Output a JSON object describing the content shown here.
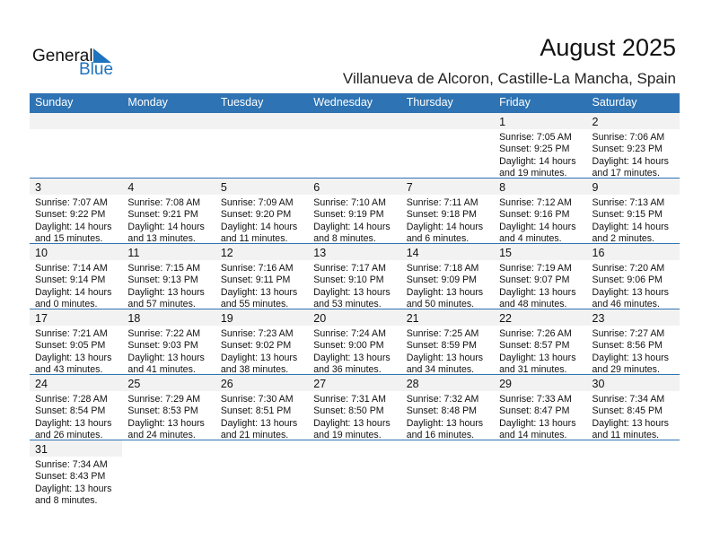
{
  "logo": {
    "text1": "General",
    "text2": "Blue"
  },
  "header": {
    "title": "August 2025",
    "location": "Villanueva de Alcoron, Castille-La Mancha, Spain"
  },
  "colors": {
    "accent": "#2e73b3",
    "band": "#f2f2f2"
  },
  "weekdays": [
    "Sunday",
    "Monday",
    "Tuesday",
    "Wednesday",
    "Thursday",
    "Friday",
    "Saturday"
  ],
  "weeks": [
    [
      null,
      null,
      null,
      null,
      null,
      {
        "day": "1",
        "sunrise": "Sunrise: 7:05 AM",
        "sunset": "Sunset: 9:25 PM",
        "daylight1": "Daylight: 14 hours",
        "daylight2": "and 19 minutes."
      },
      {
        "day": "2",
        "sunrise": "Sunrise: 7:06 AM",
        "sunset": "Sunset: 9:23 PM",
        "daylight1": "Daylight: 14 hours",
        "daylight2": "and 17 minutes."
      }
    ],
    [
      {
        "day": "3",
        "sunrise": "Sunrise: 7:07 AM",
        "sunset": "Sunset: 9:22 PM",
        "daylight1": "Daylight: 14 hours",
        "daylight2": "and 15 minutes."
      },
      {
        "day": "4",
        "sunrise": "Sunrise: 7:08 AM",
        "sunset": "Sunset: 9:21 PM",
        "daylight1": "Daylight: 14 hours",
        "daylight2": "and 13 minutes."
      },
      {
        "day": "5",
        "sunrise": "Sunrise: 7:09 AM",
        "sunset": "Sunset: 9:20 PM",
        "daylight1": "Daylight: 14 hours",
        "daylight2": "and 11 minutes."
      },
      {
        "day": "6",
        "sunrise": "Sunrise: 7:10 AM",
        "sunset": "Sunset: 9:19 PM",
        "daylight1": "Daylight: 14 hours",
        "daylight2": "and 8 minutes."
      },
      {
        "day": "7",
        "sunrise": "Sunrise: 7:11 AM",
        "sunset": "Sunset: 9:18 PM",
        "daylight1": "Daylight: 14 hours",
        "daylight2": "and 6 minutes."
      },
      {
        "day": "8",
        "sunrise": "Sunrise: 7:12 AM",
        "sunset": "Sunset: 9:16 PM",
        "daylight1": "Daylight: 14 hours",
        "daylight2": "and 4 minutes."
      },
      {
        "day": "9",
        "sunrise": "Sunrise: 7:13 AM",
        "sunset": "Sunset: 9:15 PM",
        "daylight1": "Daylight: 14 hours",
        "daylight2": "and 2 minutes."
      }
    ],
    [
      {
        "day": "10",
        "sunrise": "Sunrise: 7:14 AM",
        "sunset": "Sunset: 9:14 PM",
        "daylight1": "Daylight: 14 hours",
        "daylight2": "and 0 minutes."
      },
      {
        "day": "11",
        "sunrise": "Sunrise: 7:15 AM",
        "sunset": "Sunset: 9:13 PM",
        "daylight1": "Daylight: 13 hours",
        "daylight2": "and 57 minutes."
      },
      {
        "day": "12",
        "sunrise": "Sunrise: 7:16 AM",
        "sunset": "Sunset: 9:11 PM",
        "daylight1": "Daylight: 13 hours",
        "daylight2": "and 55 minutes."
      },
      {
        "day": "13",
        "sunrise": "Sunrise: 7:17 AM",
        "sunset": "Sunset: 9:10 PM",
        "daylight1": "Daylight: 13 hours",
        "daylight2": "and 53 minutes."
      },
      {
        "day": "14",
        "sunrise": "Sunrise: 7:18 AM",
        "sunset": "Sunset: 9:09 PM",
        "daylight1": "Daylight: 13 hours",
        "daylight2": "and 50 minutes."
      },
      {
        "day": "15",
        "sunrise": "Sunrise: 7:19 AM",
        "sunset": "Sunset: 9:07 PM",
        "daylight1": "Daylight: 13 hours",
        "daylight2": "and 48 minutes."
      },
      {
        "day": "16",
        "sunrise": "Sunrise: 7:20 AM",
        "sunset": "Sunset: 9:06 PM",
        "daylight1": "Daylight: 13 hours",
        "daylight2": "and 46 minutes."
      }
    ],
    [
      {
        "day": "17",
        "sunrise": "Sunrise: 7:21 AM",
        "sunset": "Sunset: 9:05 PM",
        "daylight1": "Daylight: 13 hours",
        "daylight2": "and 43 minutes."
      },
      {
        "day": "18",
        "sunrise": "Sunrise: 7:22 AM",
        "sunset": "Sunset: 9:03 PM",
        "daylight1": "Daylight: 13 hours",
        "daylight2": "and 41 minutes."
      },
      {
        "day": "19",
        "sunrise": "Sunrise: 7:23 AM",
        "sunset": "Sunset: 9:02 PM",
        "daylight1": "Daylight: 13 hours",
        "daylight2": "and 38 minutes."
      },
      {
        "day": "20",
        "sunrise": "Sunrise: 7:24 AM",
        "sunset": "Sunset: 9:00 PM",
        "daylight1": "Daylight: 13 hours",
        "daylight2": "and 36 minutes."
      },
      {
        "day": "21",
        "sunrise": "Sunrise: 7:25 AM",
        "sunset": "Sunset: 8:59 PM",
        "daylight1": "Daylight: 13 hours",
        "daylight2": "and 34 minutes."
      },
      {
        "day": "22",
        "sunrise": "Sunrise: 7:26 AM",
        "sunset": "Sunset: 8:57 PM",
        "daylight1": "Daylight: 13 hours",
        "daylight2": "and 31 minutes."
      },
      {
        "day": "23",
        "sunrise": "Sunrise: 7:27 AM",
        "sunset": "Sunset: 8:56 PM",
        "daylight1": "Daylight: 13 hours",
        "daylight2": "and 29 minutes."
      }
    ],
    [
      {
        "day": "24",
        "sunrise": "Sunrise: 7:28 AM",
        "sunset": "Sunset: 8:54 PM",
        "daylight1": "Daylight: 13 hours",
        "daylight2": "and 26 minutes."
      },
      {
        "day": "25",
        "sunrise": "Sunrise: 7:29 AM",
        "sunset": "Sunset: 8:53 PM",
        "daylight1": "Daylight: 13 hours",
        "daylight2": "and 24 minutes."
      },
      {
        "day": "26",
        "sunrise": "Sunrise: 7:30 AM",
        "sunset": "Sunset: 8:51 PM",
        "daylight1": "Daylight: 13 hours",
        "daylight2": "and 21 minutes."
      },
      {
        "day": "27",
        "sunrise": "Sunrise: 7:31 AM",
        "sunset": "Sunset: 8:50 PM",
        "daylight1": "Daylight: 13 hours",
        "daylight2": "and 19 minutes."
      },
      {
        "day": "28",
        "sunrise": "Sunrise: 7:32 AM",
        "sunset": "Sunset: 8:48 PM",
        "daylight1": "Daylight: 13 hours",
        "daylight2": "and 16 minutes."
      },
      {
        "day": "29",
        "sunrise": "Sunrise: 7:33 AM",
        "sunset": "Sunset: 8:47 PM",
        "daylight1": "Daylight: 13 hours",
        "daylight2": "and 14 minutes."
      },
      {
        "day": "30",
        "sunrise": "Sunrise: 7:34 AM",
        "sunset": "Sunset: 8:45 PM",
        "daylight1": "Daylight: 13 hours",
        "daylight2": "and 11 minutes."
      }
    ],
    [
      {
        "day": "31",
        "sunrise": "Sunrise: 7:34 AM",
        "sunset": "Sunset: 8:43 PM",
        "daylight1": "Daylight: 13 hours",
        "daylight2": "and 8 minutes."
      },
      null,
      null,
      null,
      null,
      null,
      null
    ]
  ]
}
